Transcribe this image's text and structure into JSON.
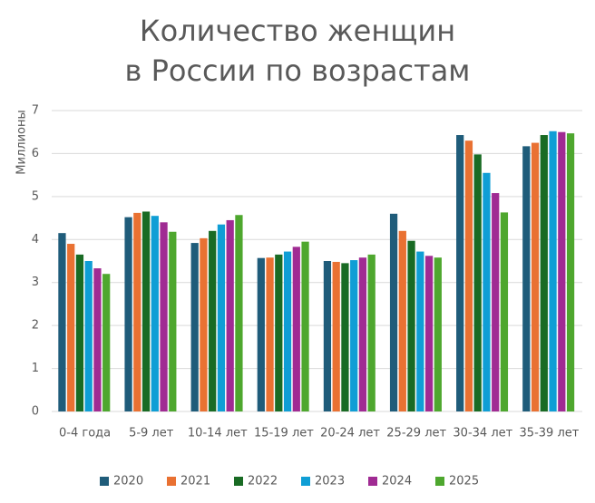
{
  "chart_data": {
    "type": "bar",
    "title": [
      "Количество женщин",
      "в России по возрастам"
    ],
    "y_label": "Миллионы",
    "categories": [
      "0-4 года",
      "5-9 лет",
      "10-14 лет",
      "15-19 лет",
      "20-24 лет",
      "25-29 лет",
      "30-34 лет",
      "35-39 лет"
    ],
    "series": [
      {
        "name": "2020",
        "color": "#1f5c7a",
        "values": [
          4.15,
          4.52,
          3.92,
          3.57,
          3.5,
          4.6,
          6.43,
          6.17
        ]
      },
      {
        "name": "2021",
        "color": "#e97132",
        "values": [
          3.9,
          4.62,
          4.03,
          3.58,
          3.48,
          4.2,
          6.3,
          6.25
        ]
      },
      {
        "name": "2022",
        "color": "#196b24",
        "values": [
          3.65,
          4.65,
          4.2,
          3.65,
          3.45,
          3.97,
          5.98,
          6.43
        ]
      },
      {
        "name": "2023",
        "color": "#0f9ed5",
        "values": [
          3.5,
          4.55,
          4.35,
          3.72,
          3.52,
          3.72,
          5.55,
          6.52
        ]
      },
      {
        "name": "2024",
        "color": "#a02b93",
        "values": [
          3.33,
          4.4,
          4.45,
          3.83,
          3.58,
          3.62,
          5.08,
          6.5
        ]
      },
      {
        "name": "2025",
        "color": "#4ea72e",
        "values": [
          3.2,
          4.18,
          4.57,
          3.95,
          3.65,
          3.58,
          4.63,
          6.47
        ]
      }
    ],
    "ylim": [
      0,
      7
    ],
    "yticks": [
      0,
      1,
      2,
      3,
      4,
      5,
      6,
      7
    ],
    "grid": true,
    "legend": "bottom"
  }
}
